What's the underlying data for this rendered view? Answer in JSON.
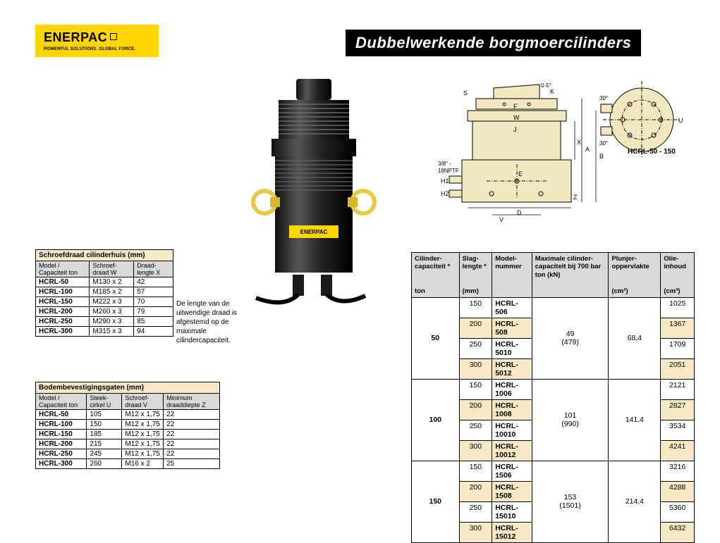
{
  "logo": {
    "brand": "ENERPAC",
    "tagline": "POWERFUL SOLUTIONS. GLOBAL FORCE."
  },
  "title": "Dubbelwerkende borgmoercilinders",
  "note": "De lengte van de uitwendige draad is afgestemd op de maximale cilindercapaciteit.",
  "diagram": {
    "model_label": "HCRL-50 - 150",
    "port_label": "3/8\" - 18NPTF",
    "angle_label": "0-5°",
    "deg30a": "30°",
    "deg30b": "30°"
  },
  "tbl1": {
    "title": "Schroefdraad cilinderhuis (mm)",
    "hdr": {
      "c0": "Model / Capaciteit ton",
      "c1": "Schroef-draad W",
      "c2": "Draad-lengte X"
    },
    "rows": [
      {
        "c0": "HCRL-50",
        "c1": "M130 x 2",
        "c2": "42"
      },
      {
        "c0": "HCRL-100",
        "c1": "M185 x 2",
        "c2": "57"
      },
      {
        "c0": "HCRL-150",
        "c1": "M222 x 3",
        "c2": "70"
      },
      {
        "c0": "HCRL-200",
        "c1": "M260 x 3",
        "c2": "79"
      },
      {
        "c0": "HCRL-250",
        "c1": "M290 x 3",
        "c2": "85"
      },
      {
        "c0": "HCRL-300",
        "c1": "M315 x 3",
        "c2": "94"
      }
    ]
  },
  "tbl2": {
    "title": "Bodembevestigingsgaten (mm)",
    "hdr": {
      "c0": "Model / Capaciteit ton",
      "c1": "Steek-cirkel U",
      "c2": "Schroef-draad V",
      "c3": "Minimum draaddiepte Z"
    },
    "rows": [
      {
        "c0": "HCRL-50",
        "c1": "105",
        "c2": "M12 x 1,75",
        "c3": "22"
      },
      {
        "c0": "HCRL-100",
        "c1": "150",
        "c2": "M12 x 1,75",
        "c3": "22"
      },
      {
        "c0": "HCRL-150",
        "c1": "185",
        "c2": "M12 x 1,75",
        "c3": "22"
      },
      {
        "c0": "HCRL-200",
        "c1": "215",
        "c2": "M12 x 1,75",
        "c3": "22"
      },
      {
        "c0": "HCRL-250",
        "c1": "245",
        "c2": "M12 x 1,75",
        "c3": "22"
      },
      {
        "c0": "HCRL-300",
        "c1": "260",
        "c2": "M16 x 2",
        "c3": "25"
      }
    ]
  },
  "tbl3": {
    "hdr": {
      "c0": "Cilinder-capaciteit *",
      "c0u": "ton",
      "c1": "Slag-lengte *",
      "c1u": "(mm)",
      "c2": "Model-nummer",
      "c3": "Maximale cilinder-capaciteit bij 700 bar ton (kN)",
      "c4": "Plunjer-oppervlakte",
      "c4u": "(cm²)",
      "c5": "Olie-inhoud",
      "c5u": "(cm³)"
    },
    "groups": [
      {
        "cap": "50",
        "rows": [
          {
            "sl": "150",
            "mn": "HCRL-506",
            "oi": "1025",
            "alt": false
          },
          {
            "sl": "200",
            "mn": "HCRL-508",
            "oi": "1367",
            "alt": true
          },
          {
            "sl": "250",
            "mn": "HCRL-5010",
            "oi": "1709",
            "alt": false
          },
          {
            "sl": "300",
            "mn": "HCRL-5012",
            "oi": "2051",
            "alt": true
          }
        ],
        "max1": "49",
        "max2": "(479)",
        "pl": "68,4"
      },
      {
        "cap": "100",
        "rows": [
          {
            "sl": "150",
            "mn": "HCRL-1006",
            "oi": "2121",
            "alt": false
          },
          {
            "sl": "200",
            "mn": "HCRL-1008",
            "oi": "2827",
            "alt": true
          },
          {
            "sl": "250",
            "mn": "HCRL-10010",
            "oi": "3534",
            "alt": false
          },
          {
            "sl": "300",
            "mn": "HCRL-10012",
            "oi": "4241",
            "alt": true
          }
        ],
        "max1": "101",
        "max2": "(990)",
        "pl": "141,4"
      },
      {
        "cap": "150",
        "rows": [
          {
            "sl": "150",
            "mn": "HCRL-1506",
            "oi": "3216",
            "alt": false
          },
          {
            "sl": "200",
            "mn": "HCRL-1508",
            "oi": "4288",
            "alt": true
          },
          {
            "sl": "250",
            "mn": "HCRL-15010",
            "oi": "5360",
            "alt": false
          },
          {
            "sl": "300",
            "mn": "HCRL-15012",
            "oi": "6432",
            "alt": true
          }
        ],
        "max1": "153",
        "max2": "(1501)",
        "pl": "214,4"
      }
    ]
  }
}
